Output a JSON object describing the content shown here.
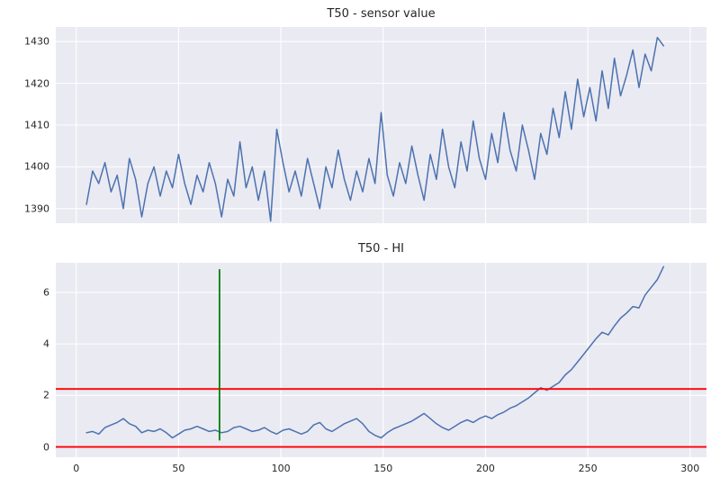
{
  "style": {
    "figure_bg": "#ffffff",
    "axes_bg": "#eaeaf2",
    "grid_color": "#ffffff",
    "text_color": "#262626"
  },
  "chart_data": [
    {
      "type": "line",
      "title": "T50 - sensor value",
      "xlabel": "",
      "ylabel": "",
      "xlim": [
        -10,
        308
      ],
      "ylim": [
        1386.5,
        1433.5
      ],
      "xticks": [
        0,
        50,
        100,
        150,
        200,
        250,
        300
      ],
      "xtick_labels": [],
      "yticks": [
        1390,
        1400,
        1410,
        1420,
        1430
      ],
      "ytick_labels": [
        "1390",
        "1400",
        "1410",
        "1420",
        "1430"
      ],
      "grid": true,
      "line_color": "#4c72b0",
      "line_width": 1.5,
      "x": [
        5,
        8,
        11,
        14,
        17,
        20,
        23,
        26,
        29,
        32,
        35,
        38,
        41,
        44,
        47,
        50,
        53,
        56,
        59,
        62,
        65,
        68,
        71,
        74,
        77,
        80,
        83,
        86,
        89,
        92,
        95,
        98,
        101,
        104,
        107,
        110,
        113,
        116,
        119,
        122,
        125,
        128,
        131,
        134,
        137,
        140,
        143,
        146,
        149,
        152,
        155,
        158,
        161,
        164,
        167,
        170,
        173,
        176,
        179,
        182,
        185,
        188,
        191,
        194,
        197,
        200,
        203,
        206,
        209,
        212,
        215,
        218,
        221,
        224,
        227,
        230,
        233,
        236,
        239,
        242,
        245,
        248,
        251,
        254,
        257,
        260,
        263,
        266,
        269,
        272,
        275,
        278,
        281,
        284,
        287
      ],
      "values": [
        1391,
        1399,
        1396,
        1401,
        1394,
        1398,
        1390,
        1402,
        1397,
        1388,
        1396,
        1400,
        1393,
        1399,
        1395,
        1403,
        1396,
        1391,
        1398,
        1394,
        1401,
        1396,
        1388,
        1397,
        1393,
        1406,
        1395,
        1400,
        1392,
        1399,
        1387,
        1409,
        1401,
        1394,
        1399,
        1393,
        1402,
        1396,
        1390,
        1400,
        1395,
        1404,
        1397,
        1392,
        1399,
        1394,
        1402,
        1396,
        1413,
        1398,
        1393,
        1401,
        1396,
        1405,
        1398,
        1392,
        1403,
        1397,
        1409,
        1400,
        1395,
        1406,
        1399,
        1411,
        1402,
        1397,
        1408,
        1401,
        1413,
        1404,
        1399,
        1410,
        1404,
        1397,
        1408,
        1403,
        1414,
        1407,
        1418,
        1409,
        1421,
        1412,
        1419,
        1411,
        1423,
        1414,
        1426,
        1417,
        1422,
        1428,
        1419,
        1427,
        1423,
        1431,
        1429
      ]
    },
    {
      "type": "line",
      "title": "T50 - HI",
      "xlabel": "",
      "ylabel": "",
      "xlim": [
        -10,
        308
      ],
      "ylim": [
        -0.4,
        7.15
      ],
      "xticks": [
        0,
        50,
        100,
        150,
        200,
        250,
        300
      ],
      "xtick_labels": [
        "0",
        "50",
        "100",
        "150",
        "200",
        "250",
        "300"
      ],
      "yticks": [
        0,
        2,
        4,
        6
      ],
      "ytick_labels": [
        "0",
        "2",
        "4",
        "6"
      ],
      "grid": true,
      "line_color": "#4c72b0",
      "line_width": 1.5,
      "hlines": [
        {
          "y": 0,
          "color": "#ff0000",
          "width": 1.8
        },
        {
          "y": 2.25,
          "color": "#ff0000",
          "width": 1.8
        }
      ],
      "vlines": [
        {
          "x": 70,
          "y1": 0.25,
          "y2": 6.9,
          "color": "#008000",
          "width": 1.8
        }
      ],
      "x": [
        5,
        8,
        11,
        14,
        17,
        20,
        23,
        26,
        29,
        32,
        35,
        38,
        41,
        44,
        47,
        50,
        53,
        56,
        59,
        62,
        65,
        68,
        71,
        74,
        77,
        80,
        83,
        86,
        89,
        92,
        95,
        98,
        101,
        104,
        107,
        110,
        113,
        116,
        119,
        122,
        125,
        128,
        131,
        134,
        137,
        140,
        143,
        146,
        149,
        152,
        155,
        158,
        161,
        164,
        167,
        170,
        173,
        176,
        179,
        182,
        185,
        188,
        191,
        194,
        197,
        200,
        203,
        206,
        209,
        212,
        215,
        218,
        221,
        224,
        227,
        230,
        233,
        236,
        239,
        242,
        245,
        248,
        251,
        254,
        257,
        260,
        263,
        266,
        269,
        272,
        275,
        278,
        281,
        284,
        287
      ],
      "values": [
        0.55,
        0.6,
        0.5,
        0.75,
        0.85,
        0.95,
        1.1,
        0.9,
        0.8,
        0.55,
        0.65,
        0.6,
        0.7,
        0.55,
        0.35,
        0.5,
        0.65,
        0.7,
        0.8,
        0.7,
        0.6,
        0.65,
        0.55,
        0.6,
        0.75,
        0.8,
        0.7,
        0.6,
        0.65,
        0.75,
        0.6,
        0.5,
        0.65,
        0.7,
        0.6,
        0.5,
        0.6,
        0.85,
        0.95,
        0.7,
        0.6,
        0.75,
        0.9,
        1.0,
        1.1,
        0.9,
        0.6,
        0.45,
        0.35,
        0.55,
        0.7,
        0.8,
        0.9,
        1.0,
        1.15,
        1.3,
        1.1,
        0.9,
        0.75,
        0.65,
        0.8,
        0.95,
        1.05,
        0.95,
        1.1,
        1.2,
        1.1,
        1.25,
        1.35,
        1.5,
        1.6,
        1.75,
        1.9,
        2.1,
        2.3,
        2.2,
        2.35,
        2.5,
        2.8,
        3.0,
        3.3,
        3.6,
        3.9,
        4.2,
        4.45,
        4.35,
        4.7,
        5.0,
        5.2,
        5.45,
        5.4,
        5.9,
        6.2,
        6.5,
        7.0
      ]
    }
  ]
}
